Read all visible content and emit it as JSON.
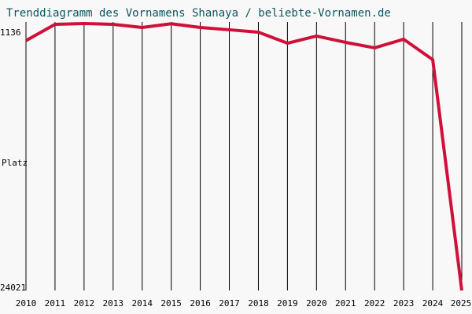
{
  "chart_data": {
    "type": "line",
    "title": "Trenddiagramm des Vornamens Shanaya / beliebte-Vornamen.de",
    "ylabel": "Platz",
    "x": [
      2010,
      2011,
      2012,
      2013,
      2014,
      2015,
      2016,
      2017,
      2018,
      2019,
      2020,
      2021,
      2022,
      2023,
      2024,
      2025
    ],
    "values": [
      2600,
      1200,
      1136,
      1200,
      1470,
      1150,
      1470,
      1670,
      1880,
      2820,
      2210,
      2750,
      3220,
      2480,
      4230,
      24021
    ],
    "color": "#d0103a",
    "xlim": [
      2010,
      2025
    ],
    "xticks": [
      2010,
      2011,
      2012,
      2013,
      2014,
      2015,
      2016,
      2017,
      2018,
      2019,
      2020,
      2021,
      2022,
      2023,
      2024,
      2025
    ],
    "ylim": [
      24021,
      1136
    ],
    "yticks": [
      1136,
      24021
    ],
    "grid": true
  }
}
